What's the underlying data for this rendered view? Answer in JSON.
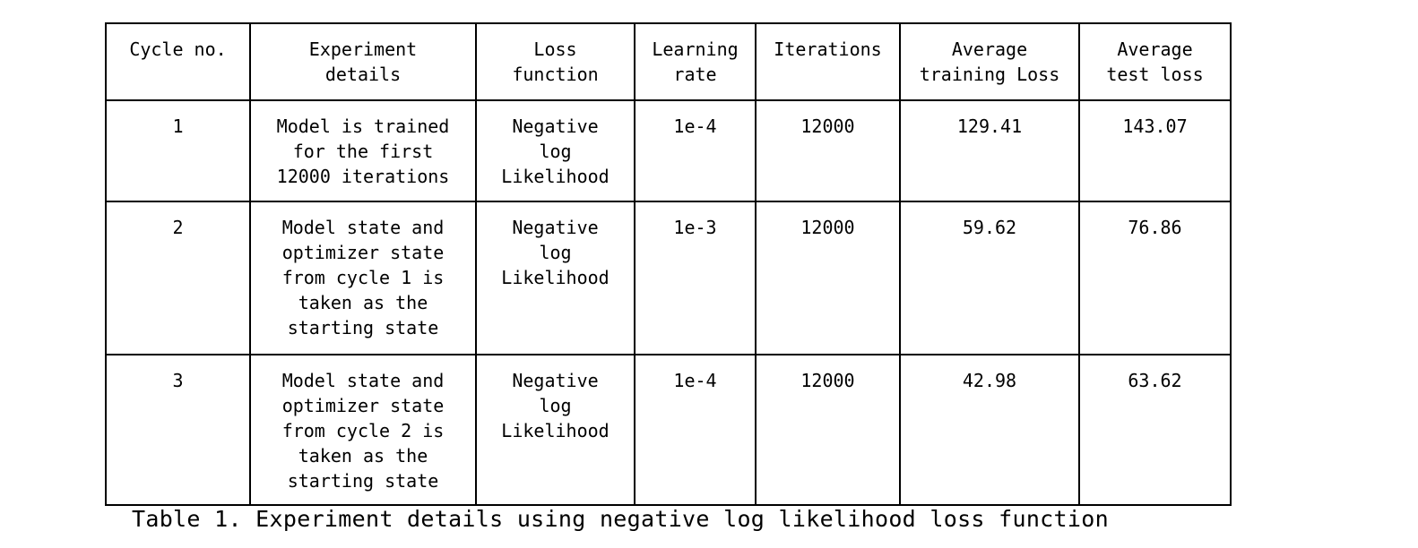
{
  "table": {
    "headers": [
      "Cycle no.",
      "Experiment\ndetails",
      "Loss\nfunction",
      "Learning\nrate",
      "Iterations",
      "Average\ntraining Loss",
      "Average\ntest loss"
    ],
    "rows": [
      [
        "1",
        "Model is trained\nfor the first\n12000 iterations",
        "Negative\nlog\nLikelihood",
        "1e-4",
        "12000",
        "129.41",
        "143.07"
      ],
      [
        "2",
        "Model state and\noptimizer state\nfrom cycle 1 is\ntaken as the\nstarting state",
        "Negative\nlog\nLikelihood",
        "1e-3",
        "12000",
        "59.62",
        "76.86"
      ],
      [
        "3",
        "Model state and\noptimizer state\nfrom cycle 2 is\ntaken as the\nstarting state",
        "Negative\nlog\nLikelihood",
        "1e-4",
        "12000",
        "42.98",
        "63.62"
      ]
    ]
  },
  "caption": "Table 1. Experiment details using negative log likelihood loss function"
}
